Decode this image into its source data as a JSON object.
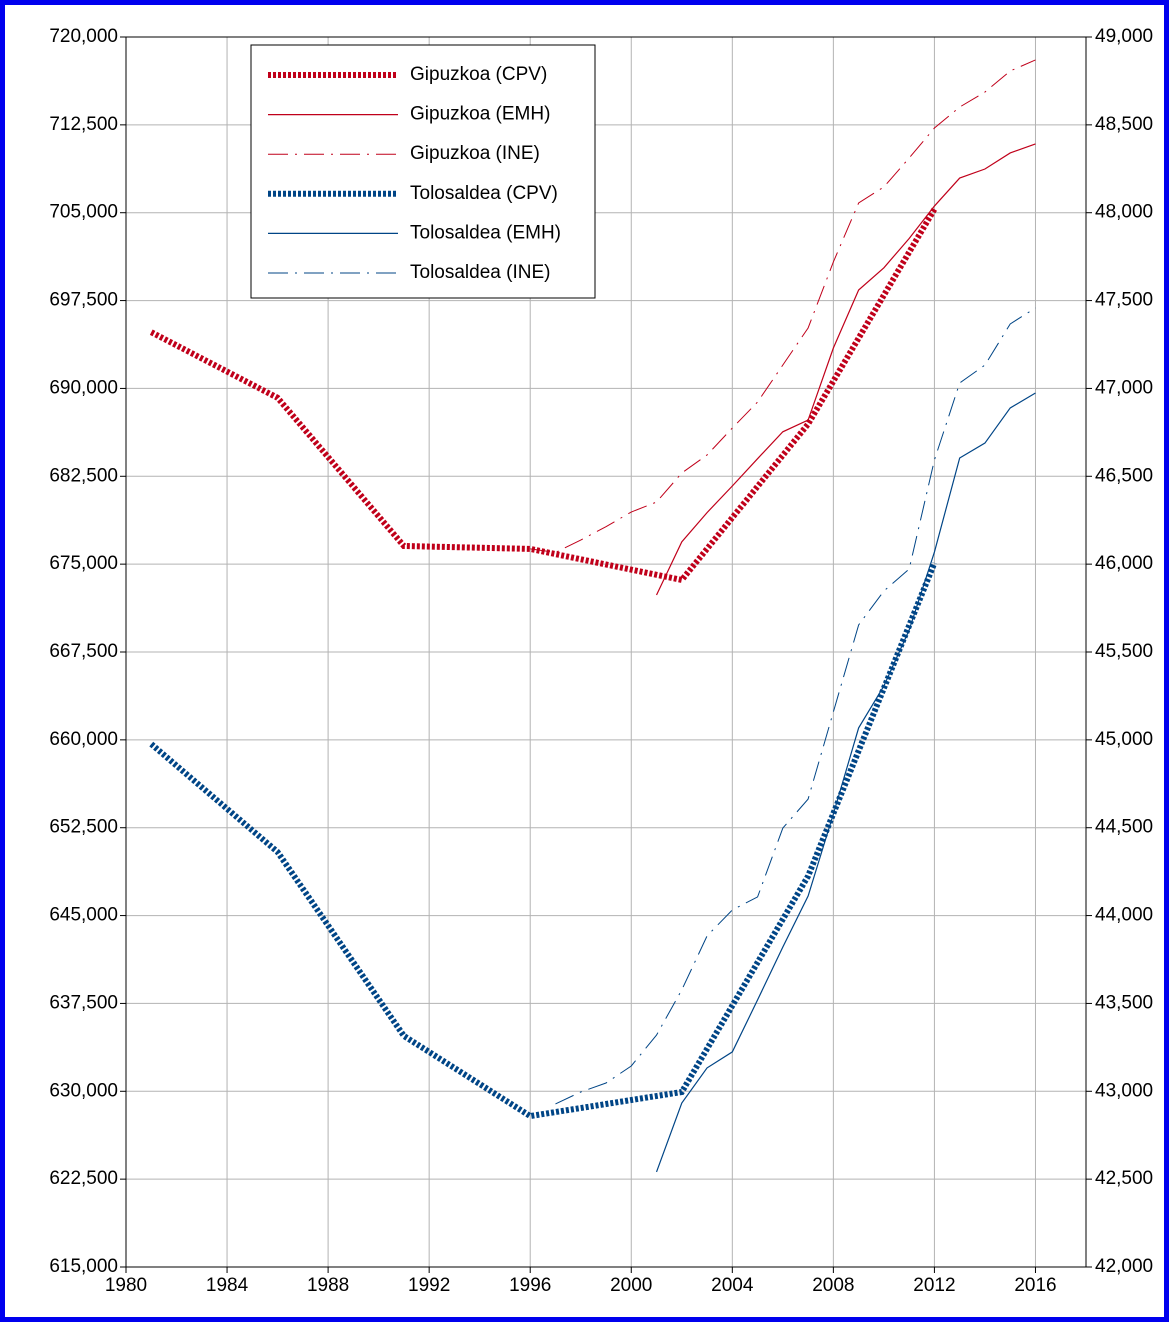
{
  "chart_data": {
    "type": "line",
    "xlim": [
      1980,
      2018
    ],
    "xticks": [
      1980,
      1984,
      1988,
      1992,
      1996,
      2000,
      2004,
      2008,
      2012,
      2016
    ],
    "ylim": [
      615000,
      720000
    ],
    "yticks": [
      {
        "value": 615000,
        "label": "615,000"
      },
      {
        "value": 622500,
        "label": "622,500"
      },
      {
        "value": 630000,
        "label": "630,000"
      },
      {
        "value": 637500,
        "label": "637,500"
      },
      {
        "value": 645000,
        "label": "645,000"
      },
      {
        "value": 652500,
        "label": "652,500"
      },
      {
        "value": 660000,
        "label": "660,000"
      },
      {
        "value": 667500,
        "label": "667,500"
      },
      {
        "value": 675000,
        "label": "675,000"
      },
      {
        "value": 682500,
        "label": "682,500"
      },
      {
        "value": 690000,
        "label": "690,000"
      },
      {
        "value": 697500,
        "label": "697,500"
      },
      {
        "value": 705000,
        "label": "705,000"
      },
      {
        "value": 712500,
        "label": "712,500"
      },
      {
        "value": 720000,
        "label": "720,000"
      }
    ],
    "y2lim": [
      42000,
      49000
    ],
    "y2ticks": [
      {
        "value": 42000,
        "label": "42,000"
      },
      {
        "value": 42500,
        "label": "42,500"
      },
      {
        "value": 43000,
        "label": "43,000"
      },
      {
        "value": 43500,
        "label": "43,500"
      },
      {
        "value": 44000,
        "label": "44,000"
      },
      {
        "value": 44500,
        "label": "44,500"
      },
      {
        "value": 45000,
        "label": "45,000"
      },
      {
        "value": 45500,
        "label": "45,500"
      },
      {
        "value": 46000,
        "label": "46,000"
      },
      {
        "value": 46500,
        "label": "46,500"
      },
      {
        "value": 47000,
        "label": "47,000"
      },
      {
        "value": 47500,
        "label": "47,500"
      },
      {
        "value": 48000,
        "label": "48,000"
      },
      {
        "value": 48500,
        "label": "48,500"
      },
      {
        "value": 49000,
        "label": "49,000"
      }
    ],
    "grid": true,
    "legend": "top-left",
    "series": [
      {
        "name": "Gipuzkoa (CPV)",
        "color": "#c0001a",
        "style": "dotted",
        "axis": "y",
        "x": [
          1981,
          1986,
          1991,
          1996,
          2002,
          2007,
          2012
        ],
        "values": [
          694800,
          689200,
          676550,
          676300,
          673650,
          686960,
          705300
        ]
      },
      {
        "name": "Gipuzkoa (EMH)",
        "color": "#c0001a",
        "style": "solid",
        "axis": "y",
        "x": [
          2001,
          2002,
          2003,
          2004,
          2005,
          2006,
          2007,
          2008,
          2009,
          2010,
          2011,
          2012,
          2013,
          2014,
          2015,
          2016
        ],
        "values": [
          672370,
          676900,
          679400,
          681670,
          684000,
          686300,
          687300,
          693450,
          698400,
          700300,
          702800,
          705570,
          707960,
          708730,
          710100,
          710870
        ]
      },
      {
        "name": "Gipuzkoa (INE)",
        "color": "#c0001a",
        "style": "dashdot",
        "axis": "y",
        "x": [
          1996,
          1997,
          1998,
          1999,
          2000,
          2001,
          2002,
          2003,
          2004,
          2005,
          2006,
          2007,
          2008,
          2009,
          2010,
          2011,
          2012,
          2013,
          2014,
          2015,
          2016
        ],
        "values": [
          676300,
          676000,
          677060,
          678200,
          679450,
          680300,
          682780,
          684320,
          686620,
          688840,
          692000,
          695160,
          700800,
          705830,
          707200,
          709670,
          712230,
          714020,
          715300,
          717100,
          718040
        ]
      },
      {
        "name": "Tolosaldea (CPV)",
        "color": "#004586",
        "style": "dotted",
        "axis": "y2",
        "x": [
          1981,
          1986,
          1991,
          1996,
          2002,
          2007,
          2012
        ],
        "values": [
          44976,
          44362,
          43315,
          42859,
          42996,
          44225,
          46007
        ]
      },
      {
        "name": "Tolosaldea (EMH)",
        "color": "#004586",
        "style": "solid",
        "axis": "y2",
        "x": [
          2001,
          2002,
          2003,
          2004,
          2005,
          2006,
          2007,
          2008,
          2009,
          2010,
          2011,
          2012,
          2013,
          2014,
          2015,
          2016
        ],
        "values": [
          42541,
          42933,
          43133,
          43224,
          43520,
          43821,
          44111,
          44578,
          45068,
          45307,
          45625,
          46069,
          46604,
          46689,
          46889,
          46974
        ]
      },
      {
        "name": "Tolosaldea (INE)",
        "color": "#004586",
        "style": "dashdot",
        "axis": "y2",
        "x": [
          1997,
          1998,
          1999,
          2000,
          2001,
          2002,
          2003,
          2004,
          2005,
          2006,
          2007,
          2008,
          2009,
          2010,
          2011,
          2012,
          2013,
          2014,
          2015,
          2016
        ],
        "values": [
          42928,
          42996,
          43047,
          43144,
          43320,
          43577,
          43884,
          44032,
          44106,
          44498,
          44663,
          45159,
          45654,
          45847,
          45972,
          46593,
          47031,
          47133,
          47367,
          47458
        ]
      }
    ]
  }
}
